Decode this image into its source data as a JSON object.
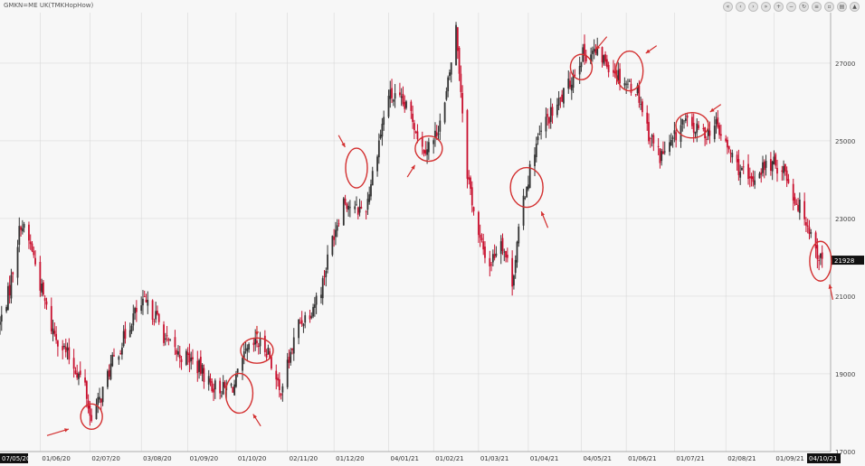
{
  "title": "GMKN=ME UK(TMKHopHow)",
  "toolbar": {
    "buttons": [
      {
        "name": "first-icon",
        "glyph": "«"
      },
      {
        "name": "prev-icon",
        "glyph": "‹"
      },
      {
        "name": "play-icon",
        "glyph": "›"
      },
      {
        "name": "next-icon",
        "glyph": "»"
      },
      {
        "name": "zoom-in-icon",
        "glyph": "+"
      },
      {
        "name": "zoom-out-icon",
        "glyph": "−"
      },
      {
        "name": "refresh-icon",
        "glyph": "↻"
      },
      {
        "name": "properties-icon",
        "glyph": "≡"
      },
      {
        "name": "settings-icon",
        "glyph": "▫"
      },
      {
        "name": "print-icon",
        "glyph": "▤"
      },
      {
        "name": "collapse-icon",
        "glyph": "▲"
      }
    ]
  },
  "colors": {
    "up": "#333333",
    "down": "#c8102e",
    "annotation": "#d32f2f",
    "grid": "#d9d9d9",
    "badge": "#111111"
  },
  "chart_data": {
    "type": "candlestick",
    "title": "GMKN=ME UK(TMKHopHow)",
    "ylim": [
      17000,
      28300
    ],
    "yticks": [
      17000,
      19000,
      21000,
      23000,
      25000,
      27000
    ],
    "xlim": [
      "2020-05-07",
      "2021-10-04"
    ],
    "x_ticks": [
      "01/06/20",
      "02/07/20",
      "03/08/20",
      "01/09/20",
      "01/10/20",
      "02/11/20",
      "01/12/20",
      "04/01/21",
      "01/02/21",
      "01/03/21",
      "01/04/21",
      "04/05/21",
      "01/06/21",
      "01/07/21",
      "02/08/21",
      "01/09/21"
    ],
    "x_ticks_dates": [
      "2020-06-01",
      "2020-07-02",
      "2020-08-03",
      "2020-09-01",
      "2020-10-01",
      "2020-11-02",
      "2020-12-01",
      "2021-01-04",
      "2021-02-01",
      "2021-03-01",
      "2021-04-01",
      "2021-05-04",
      "2021-06-01",
      "2021-07-01",
      "2021-08-02",
      "2021-09-01"
    ],
    "start_label": "07/05/20",
    "end_label": "04/10/21",
    "last_price_label": "21928",
    "last_price": 21928,
    "grid": true,
    "price_path": [
      [
        "2020-05-07",
        20300
      ],
      [
        "2020-05-13",
        21200
      ],
      [
        "2020-05-20",
        22900
      ],
      [
        "2020-05-27",
        22200
      ],
      [
        "2020-06-01",
        21300
      ],
      [
        "2020-06-08",
        20200
      ],
      [
        "2020-06-15",
        19700
      ],
      [
        "2020-06-22",
        19200
      ],
      [
        "2020-06-29",
        18700
      ],
      [
        "2020-07-02",
        17900
      ],
      [
        "2020-07-08",
        18300
      ],
      [
        "2020-07-15",
        19200
      ],
      [
        "2020-07-22",
        19800
      ],
      [
        "2020-07-29",
        20500
      ],
      [
        "2020-08-05",
        20800
      ],
      [
        "2020-08-12",
        20500
      ],
      [
        "2020-08-19",
        19800
      ],
      [
        "2020-08-26",
        19500
      ],
      [
        "2020-09-02",
        19400
      ],
      [
        "2020-09-09",
        19100
      ],
      [
        "2020-09-16",
        18700
      ],
      [
        "2020-09-23",
        18600
      ],
      [
        "2020-09-30",
        18700
      ],
      [
        "2020-10-07",
        19500
      ],
      [
        "2020-10-14",
        19800
      ],
      [
        "2020-10-21",
        19600
      ],
      [
        "2020-10-28",
        18500
      ],
      [
        "2020-11-02",
        19200
      ],
      [
        "2020-11-09",
        20300
      ],
      [
        "2020-11-16",
        20600
      ],
      [
        "2020-11-23",
        21200
      ],
      [
        "2020-11-30",
        22500
      ],
      [
        "2020-12-07",
        23500
      ],
      [
        "2020-12-14",
        23200
      ],
      [
        "2020-12-21",
        23300
      ],
      [
        "2020-12-28",
        24800
      ],
      [
        "2021-01-04",
        26200
      ],
      [
        "2021-01-11",
        26000
      ],
      [
        "2021-01-18",
        25700
      ],
      [
        "2021-01-25",
        24800
      ],
      [
        "2021-02-01",
        25000
      ],
      [
        "2021-02-08",
        25900
      ],
      [
        "2021-02-15",
        27900
      ],
      [
        "2021-02-22",
        24200
      ],
      [
        "2021-03-01",
        22500
      ],
      [
        "2021-03-08",
        21800
      ],
      [
        "2021-03-15",
        22500
      ],
      [
        "2021-03-22",
        21400
      ],
      [
        "2021-03-29",
        23500
      ],
      [
        "2021-04-05",
        24800
      ],
      [
        "2021-04-12",
        25500
      ],
      [
        "2021-04-19",
        25900
      ],
      [
        "2021-04-26",
        26400
      ],
      [
        "2021-05-04",
        27200
      ],
      [
        "2021-05-11",
        27300
      ],
      [
        "2021-05-18",
        27100
      ],
      [
        "2021-05-25",
        26800
      ],
      [
        "2021-06-01",
        26500
      ],
      [
        "2021-06-08",
        26300
      ],
      [
        "2021-06-15",
        25200
      ],
      [
        "2021-06-22",
        24600
      ],
      [
        "2021-06-29",
        24900
      ],
      [
        "2021-07-06",
        25500
      ],
      [
        "2021-07-13",
        25300
      ],
      [
        "2021-07-20",
        25200
      ],
      [
        "2021-07-27",
        25400
      ],
      [
        "2021-08-03",
        24800
      ],
      [
        "2021-08-10",
        24300
      ],
      [
        "2021-08-17",
        23900
      ],
      [
        "2021-08-24",
        24300
      ],
      [
        "2021-08-31",
        24400
      ],
      [
        "2021-09-07",
        24300
      ],
      [
        "2021-09-14",
        23500
      ],
      [
        "2021-09-21",
        23000
      ],
      [
        "2021-09-28",
        22100
      ],
      [
        "2021-10-01",
        21900
      ]
    ],
    "annotations": [
      {
        "date": "2020-07-03",
        "price": 17900
      },
      {
        "date": "2020-10-03",
        "price": 18500
      },
      {
        "date": "2020-10-14",
        "price": 19600
      },
      {
        "date": "2020-12-15",
        "price": 24300
      },
      {
        "date": "2021-01-29",
        "price": 24800
      },
      {
        "date": "2021-03-31",
        "price": 23800
      },
      {
        "date": "2021-05-04",
        "price": 26900
      },
      {
        "date": "2021-06-03",
        "price": 26800
      },
      {
        "date": "2021-07-12",
        "price": 25400
      },
      {
        "date": "2021-09-30",
        "price": 21900
      }
    ]
  }
}
